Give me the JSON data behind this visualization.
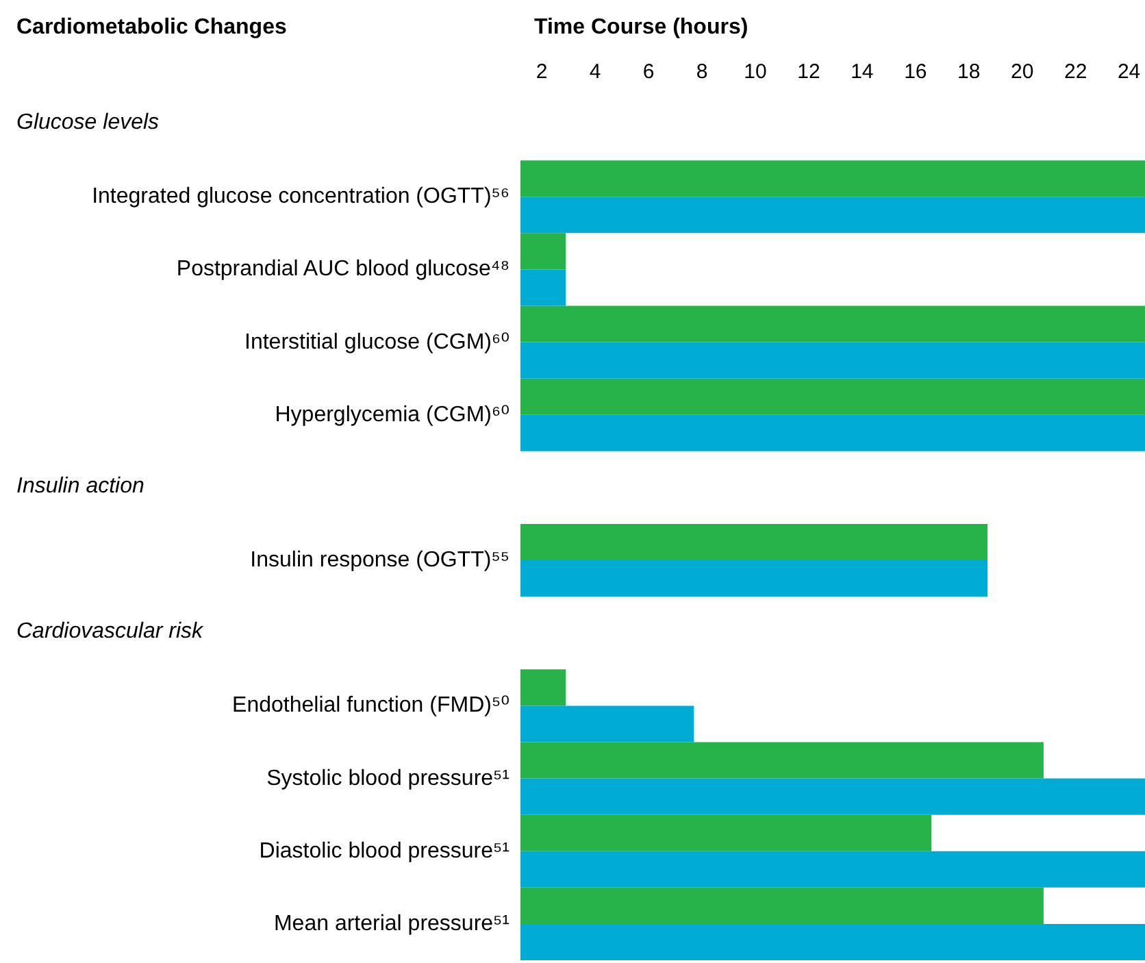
{
  "chart_data": {
    "type": "bar",
    "orientation": "horizontal",
    "xlabel": "Time Course (hours)",
    "ylabel": "Cardiometabolic Changes",
    "annotations": [
      "Glucose levels",
      "Insulin action",
      "Cardiovascular risk"
    ],
    "categories": [
      null,
      "Integrated glucose concentration (OGTT)⁵⁶",
      "Postprandial AUC blood glucose⁴⁸",
      "Interstitial glucose (CGM)⁶⁰",
      "Hyperglycemia (CGM)⁶⁰",
      null,
      "Insulin response (OGTT)⁵⁵",
      null,
      "Endothelial function (FMD)⁵⁰",
      "Systolic blood pressure⁵¹",
      "Diastolic blood pressure⁵¹",
      "Mean arterial pressure⁵¹"
    ],
    "series": [
      {
        "color": "#27b24a",
        "values": [
          null,
          24.6,
          2.9,
          24.6,
          24.6,
          null,
          18.7,
          null,
          2.9,
          20.8,
          16.6,
          20.8
        ]
      },
      {
        "color": "#00acd4",
        "values": [
          null,
          24.6,
          2.9,
          24.6,
          24.6,
          null,
          18.7,
          null,
          7.7,
          24.6,
          24.6,
          24.6
        ]
      }
    ],
    "xlim": [
      1.2,
      24.6
    ],
    "xticks": [
      2,
      4,
      6,
      8,
      10,
      12,
      14,
      16,
      18,
      20,
      22,
      24
    ],
    "grid": false
  }
}
